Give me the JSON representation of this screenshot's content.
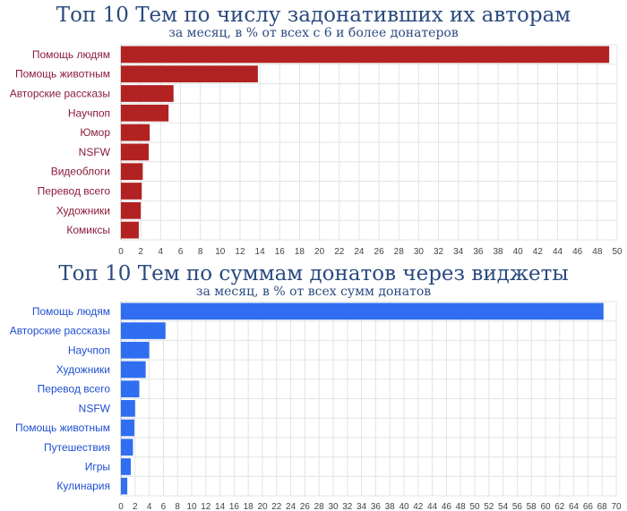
{
  "chart_data": [
    {
      "type": "bar",
      "orientation": "horizontal",
      "title": "Топ 10 Тем по числу задонативших их авторам",
      "subtitle": "за месяц, в % от всех с 6 и более донатеров",
      "categories": [
        "Помощь людям",
        "Помощь животным",
        "Авторские рассказы",
        "Научпоп",
        "Юмор",
        "NSFW",
        "Видеоблоги",
        "Перевод всего",
        "Художники",
        "Комиксы"
      ],
      "values": [
        49.2,
        13.8,
        5.3,
        4.8,
        2.9,
        2.8,
        2.2,
        2.1,
        2.0,
        1.8
      ],
      "xlim": [
        0,
        50
      ],
      "xticks": [
        "0",
        "2",
        "4",
        "6",
        "8",
        "10",
        "12",
        "14",
        "16",
        "18",
        "20",
        "22",
        "24",
        "26",
        "28",
        "30",
        "32",
        "34",
        "36",
        "38",
        "40",
        "42",
        "44",
        "46",
        "48",
        "50"
      ],
      "bar_color": "#b22222",
      "label_color": "#8b1a3a",
      "grid": true
    },
    {
      "type": "bar",
      "orientation": "horizontal",
      "title": "Топ 10 Тем по суммам донатов через виджеты",
      "subtitle": "за месяц, в % от всех сумм донатов",
      "categories": [
        "Помощь людям",
        "Авторские рассказы",
        "Научпоп",
        "Художники",
        "Перевод всего",
        "NSFW",
        "Помощь животным",
        "Путешествия",
        "Игры",
        "Кулинария"
      ],
      "values": [
        68.2,
        6.3,
        4.0,
        3.5,
        2.6,
        2.0,
        1.9,
        1.7,
        1.4,
        0.9
      ],
      "xlim": [
        0,
        70
      ],
      "xticks": [
        "0",
        "2",
        "4",
        "6",
        "8",
        "10",
        "12",
        "14",
        "16",
        "18",
        "20",
        "22",
        "24",
        "26",
        "28",
        "30",
        "32",
        "34",
        "36",
        "38",
        "40",
        "42",
        "44",
        "46",
        "48",
        "50",
        "52",
        "54",
        "56",
        "58",
        "60",
        "62",
        "64",
        "66",
        "68",
        "70"
      ],
      "bar_color": "#2f6ef0",
      "label_color": "#1f4fd0",
      "grid": true
    }
  ]
}
